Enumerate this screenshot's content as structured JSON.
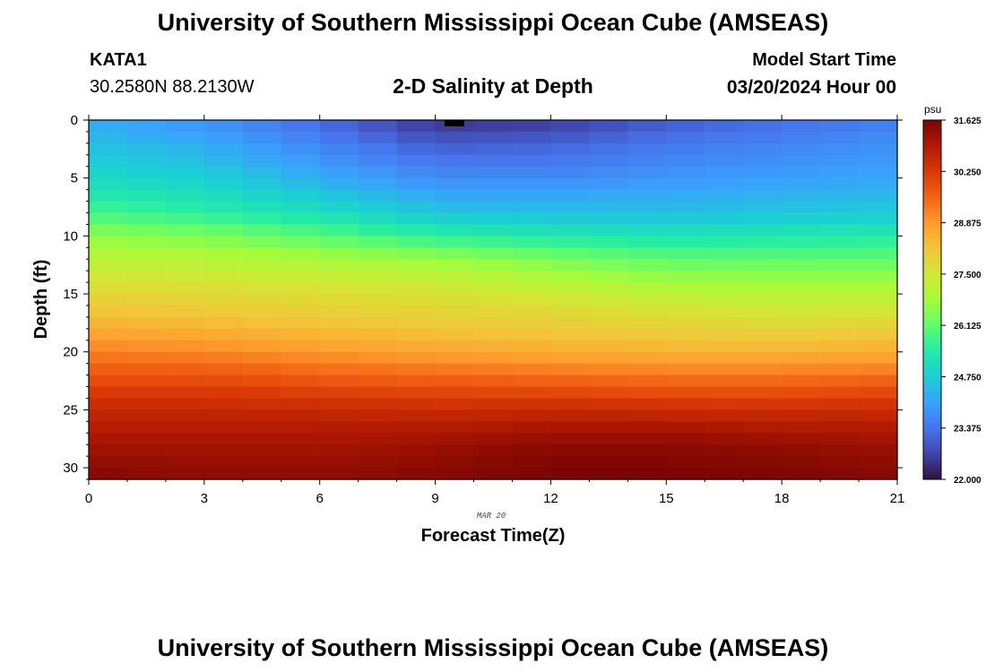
{
  "header": {
    "title": "University of Southern Mississippi Ocean Cube (AMSEAS)",
    "station": "KATA1",
    "coordinates": "30.2580N  88.2130W",
    "subtitle": "2-D Salinity at Depth",
    "start_label": "Model Start Time",
    "start_value": "03/20/2024 Hour 00"
  },
  "footer": {
    "title": "University of Southern Mississippi Ocean Cube (AMSEAS)"
  },
  "chart_data": {
    "type": "heatmap",
    "title": "2-D Salinity at Depth",
    "xlabel": "Forecast Time(Z)",
    "ylabel": "Depth (ft)",
    "date_label": "MAR 20",
    "xlim": [
      0,
      21
    ],
    "ylim": [
      0,
      31
    ],
    "xticks": [
      0,
      3,
      6,
      9,
      12,
      15,
      18,
      21
    ],
    "yticks": [
      0,
      5,
      10,
      15,
      20,
      25,
      30
    ],
    "colorbar": {
      "unit": "psu",
      "min": 22.0,
      "max": 31.625,
      "ticks": [
        "31.625",
        "30.250",
        "28.875",
        "27.500",
        "26.125",
        "24.750",
        "23.375",
        "22.000"
      ],
      "colors": [
        "#30123b",
        "#4145ab",
        "#4675ed",
        "#39a2fc",
        "#1bcfd4",
        "#24eca6",
        "#61fc6c",
        "#a4fc3b",
        "#d1e834",
        "#f3c63a",
        "#fe9b2d",
        "#f36315",
        "#d93806",
        "#b11901",
        "#7a0403"
      ]
    },
    "x": [
      0,
      3,
      6,
      9,
      12,
      15,
      18,
      21
    ],
    "depths": [
      0,
      2,
      4,
      6,
      8,
      10,
      12,
      14,
      16,
      18,
      20,
      22,
      24,
      26,
      28,
      30,
      31
    ],
    "values": [
      [
        24.2,
        23.8,
        23.2,
        22.4,
        22.5,
        23.0,
        23.3,
        23.5
      ],
      [
        24.5,
        24.2,
        23.6,
        23.0,
        23.1,
        23.4,
        23.6,
        23.8
      ],
      [
        24.8,
        24.6,
        24.0,
        23.5,
        23.5,
        23.7,
        23.9,
        24.0
      ],
      [
        25.2,
        25.0,
        24.5,
        24.0,
        24.0,
        24.1,
        24.2,
        24.3
      ],
      [
        25.8,
        25.5,
        25.1,
        24.6,
        24.5,
        24.5,
        24.6,
        24.7
      ],
      [
        26.6,
        26.4,
        26.0,
        25.5,
        25.3,
        25.2,
        25.3,
        25.4
      ],
      [
        27.2,
        27.1,
        26.9,
        26.7,
        26.4,
        26.1,
        26.1,
        26.1
      ],
      [
        27.6,
        27.6,
        27.5,
        27.4,
        27.1,
        26.8,
        26.8,
        26.8
      ],
      [
        28.1,
        28.0,
        27.9,
        27.8,
        27.7,
        27.5,
        27.4,
        27.4
      ],
      [
        28.6,
        28.5,
        28.3,
        28.2,
        28.1,
        28.0,
        27.9,
        28.0
      ],
      [
        29.2,
        29.1,
        28.9,
        28.7,
        28.6,
        28.5,
        28.5,
        28.6
      ],
      [
        29.8,
        29.8,
        29.6,
        29.5,
        29.4,
        29.3,
        29.3,
        29.4
      ],
      [
        30.4,
        30.4,
        30.3,
        30.2,
        30.2,
        30.1,
        30.1,
        30.2
      ],
      [
        30.8,
        30.8,
        30.8,
        30.8,
        30.9,
        30.9,
        30.8,
        30.8
      ],
      [
        31.1,
        31.1,
        31.1,
        31.2,
        31.4,
        31.4,
        31.3,
        31.2
      ],
      [
        31.4,
        31.3,
        31.3,
        31.4,
        31.6,
        31.6,
        31.5,
        31.4
      ],
      [
        31.5,
        31.4,
        31.4,
        31.5,
        31.6,
        31.6,
        31.6,
        31.5
      ]
    ]
  }
}
